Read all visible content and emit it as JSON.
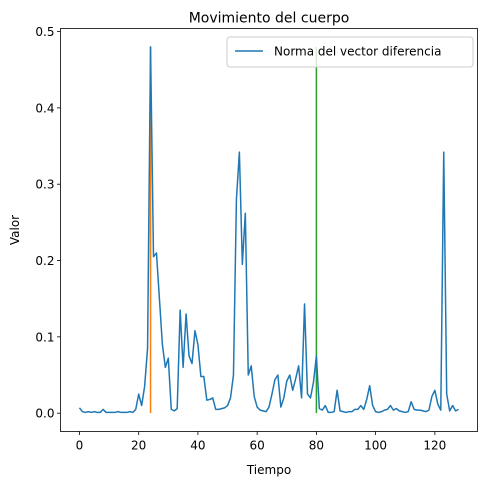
{
  "chart_data": {
    "type": "line",
    "title": "Movimiento del cuerpo",
    "xlabel": "Tiempo",
    "ylabel": "Valor",
    "xlim": [
      -6.4,
      134.4
    ],
    "ylim": [
      -0.024,
      0.504
    ],
    "xticks": [
      0,
      20,
      40,
      60,
      80,
      100,
      120
    ],
    "yticks": [
      0.0,
      0.1,
      0.2,
      0.3,
      0.4,
      0.5
    ],
    "ytick_labels": [
      "0.0",
      "0.1",
      "0.2",
      "0.3",
      "0.4",
      "0.5"
    ],
    "legend": {
      "position": "top-right",
      "entries": [
        "Norma del vector diferencia"
      ]
    },
    "series": [
      {
        "name": "Norma del vector diferencia",
        "color": "#1f77b4",
        "x": [
          0,
          1,
          2,
          3,
          4,
          5,
          6,
          7,
          8,
          9,
          10,
          11,
          12,
          13,
          14,
          15,
          16,
          17,
          18,
          19,
          20,
          21,
          22,
          23,
          24,
          25,
          26,
          27,
          28,
          29,
          30,
          31,
          32,
          33,
          34,
          35,
          36,
          37,
          38,
          39,
          40,
          41,
          42,
          43,
          44,
          45,
          46,
          47,
          48,
          49,
          50,
          51,
          52,
          53,
          54,
          55,
          56,
          57,
          58,
          59,
          60,
          61,
          62,
          63,
          64,
          65,
          66,
          67,
          68,
          69,
          70,
          71,
          72,
          73,
          74,
          75,
          76,
          77,
          78,
          79,
          80,
          81,
          82,
          83,
          84,
          85,
          86,
          87,
          88,
          89,
          90,
          91,
          92,
          93,
          94,
          95,
          96,
          97,
          98,
          99,
          100,
          101,
          102,
          103,
          104,
          105,
          106,
          107,
          108,
          109,
          110,
          111,
          112,
          113,
          114,
          115,
          116,
          117,
          118,
          119,
          120,
          121,
          122,
          123,
          124,
          125,
          126,
          127,
          128
        ],
        "values": [
          0.007,
          0.002,
          0.001,
          0.002,
          0.001,
          0.002,
          0.001,
          0.001,
          0.005,
          0.001,
          0.001,
          0.001,
          0.001,
          0.002,
          0.001,
          0.001,
          0.001,
          0.002,
          0.001,
          0.005,
          0.025,
          0.01,
          0.035,
          0.085,
          0.48,
          0.205,
          0.21,
          0.15,
          0.09,
          0.06,
          0.072,
          0.005,
          0.003,
          0.006,
          0.135,
          0.06,
          0.13,
          0.075,
          0.065,
          0.108,
          0.09,
          0.048,
          0.048,
          0.017,
          0.018,
          0.02,
          0.005,
          0.005,
          0.006,
          0.007,
          0.01,
          0.02,
          0.05,
          0.28,
          0.342,
          0.195,
          0.262,
          0.05,
          0.062,
          0.022,
          0.008,
          0.004,
          0.003,
          0.002,
          0.008,
          0.025,
          0.044,
          0.05,
          0.008,
          0.02,
          0.042,
          0.05,
          0.03,
          0.045,
          0.062,
          0.02,
          0.143,
          0.025,
          0.02,
          0.04,
          0.075,
          0.006,
          0.004,
          0.01,
          0.001,
          0.001,
          0.002,
          0.03,
          0.003,
          0.002,
          0.001,
          0.002,
          0.002,
          0.005,
          0.005,
          0.01,
          0.005,
          0.018,
          0.036,
          0.01,
          0.002,
          0.001,
          0.002,
          0.004,
          0.005,
          0.01,
          0.004,
          0.006,
          0.003,
          0.002,
          0.001,
          0.002,
          0.015,
          0.005,
          0.004,
          0.004,
          0.003,
          0.002,
          0.004,
          0.022,
          0.03,
          0.012,
          0.004,
          0.342,
          0.025,
          0.003,
          0.01,
          0.003,
          0.005
        ]
      }
    ],
    "vlines": [
      {
        "x": 24,
        "ymin": 0.0,
        "ymax": 0.48,
        "color": "#ff7f0e"
      },
      {
        "x": 80,
        "ymin": 0.0,
        "ymax": 0.48,
        "color": "#2ca02c"
      }
    ]
  }
}
